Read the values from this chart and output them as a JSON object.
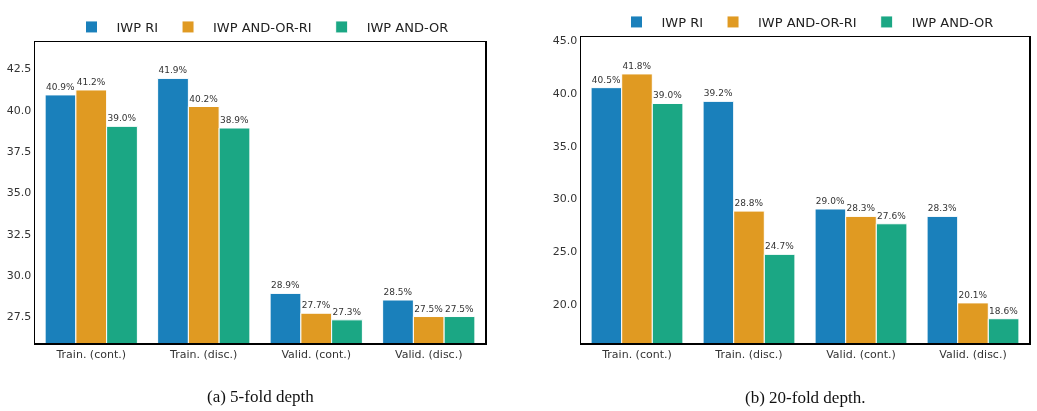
{
  "chart_data": [
    {
      "type": "bar",
      "categories": [
        "Train. (cont.)",
        "Train. (disc.)",
        "Valid. (cont.)",
        "Valid. (disc.)"
      ],
      "series": [
        {
          "name": "IWP RI",
          "color": "#1a80bb",
          "values": [
            40.9,
            41.9,
            28.9,
            28.5
          ],
          "value_labels": [
            "40.9%",
            "41.9%",
            "28.9%",
            "28.5%"
          ]
        },
        {
          "name": "IWP AND-OR-RI",
          "color": "#e09a22",
          "values": [
            41.2,
            40.2,
            27.7,
            27.5
          ],
          "value_labels": [
            "41.2%",
            "40.2%",
            "27.7%",
            "27.5%"
          ]
        },
        {
          "name": "IWP AND-OR",
          "color": "#1ba784",
          "values": [
            39.0,
            38.9,
            27.3,
            27.5
          ],
          "value_labels": [
            "39.0%",
            "38.9%",
            "27.3%",
            "27.5%"
          ]
        }
      ],
      "ylim": [
        25.9,
        44.1
      ],
      "yticks": [
        {
          "value": 27.5,
          "label": "27.5"
        },
        {
          "value": 30,
          "label": "30.0"
        },
        {
          "value": 32.5,
          "label": "32.5"
        },
        {
          "value": 35,
          "label": "35.0"
        },
        {
          "value": 37.5,
          "label": "37.5"
        },
        {
          "value": 40,
          "label": "40.0"
        },
        {
          "value": 42.5,
          "label": "42.5"
        }
      ],
      "grid": false,
      "legend": "top",
      "annotations": [
        "(a) 5-fold depth"
      ]
    },
    {
      "type": "bar",
      "categories": [
        "Train. (cont.)",
        "Train. (disc.)",
        "Valid. (cont.)",
        "Valid. (disc.)"
      ],
      "series": [
        {
          "name": "IWP RI",
          "color": "#1a80bb",
          "values": [
            40.5,
            39.2,
            29.0,
            28.3
          ],
          "value_labels": [
            "40.5%",
            "39.2%",
            "29.0%",
            "28.3%"
          ]
        },
        {
          "name": "IWP AND-OR-RI",
          "color": "#e09a22",
          "values": [
            41.8,
            28.8,
            28.3,
            20.1
          ],
          "value_labels": [
            "41.8%",
            "28.8%",
            "28.3%",
            "20.1%"
          ]
        },
        {
          "name": "IWP AND-OR",
          "color": "#1ba784",
          "values": [
            39.0,
            24.7,
            27.6,
            18.6
          ],
          "value_labels": [
            "39.0%",
            "24.7%",
            "27.6%",
            "18.6%"
          ]
        }
      ],
      "ylim": [
        16.3,
        45.3
      ],
      "yticks": [
        {
          "value": 20,
          "label": "20.0"
        },
        {
          "value": 25,
          "label": "25.0"
        },
        {
          "value": 30,
          "label": "30.0"
        },
        {
          "value": 35,
          "label": "35.0"
        },
        {
          "value": 40,
          "label": "40.0"
        },
        {
          "value": 45,
          "label": "45.0"
        }
      ],
      "grid": false,
      "legend": "top",
      "annotations": [
        "(b) 20-fold depth."
      ]
    }
  ]
}
